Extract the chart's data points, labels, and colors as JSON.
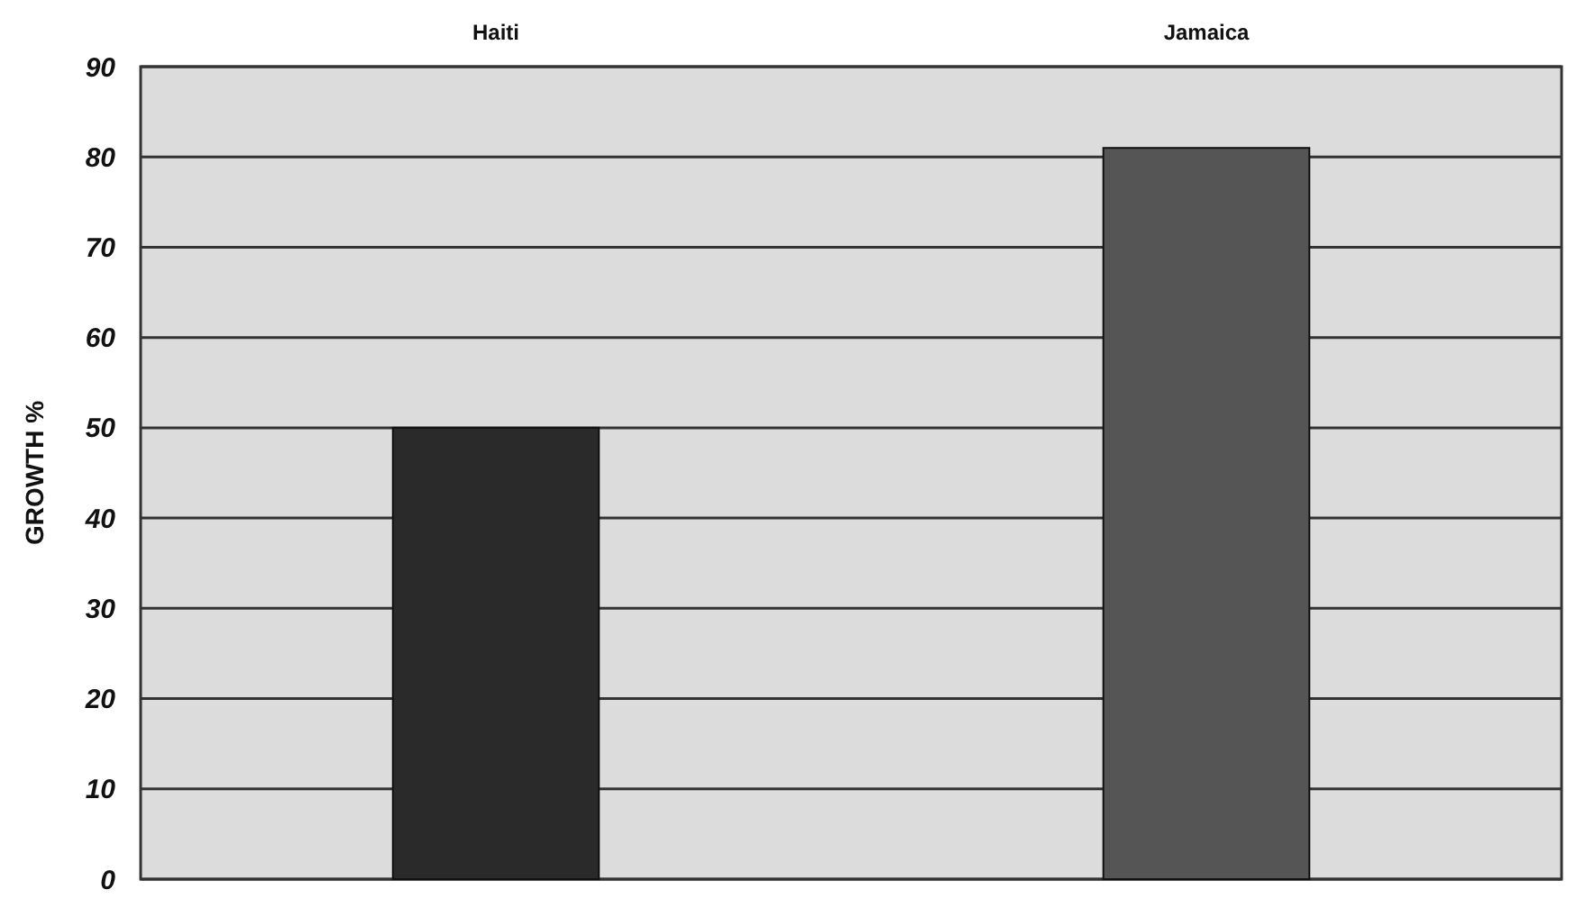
{
  "chart_data": {
    "type": "bar",
    "ylabel": "GROWTH %",
    "categories": [
      "Haiti",
      "Jamaica"
    ],
    "values": [
      50,
      81
    ],
    "colors": [
      "#2a2a2a",
      "#555555"
    ],
    "ylim": [
      0,
      90
    ],
    "yticks": [
      0,
      10,
      20,
      30,
      40,
      50,
      60,
      70,
      80,
      90
    ],
    "grid": "y"
  }
}
